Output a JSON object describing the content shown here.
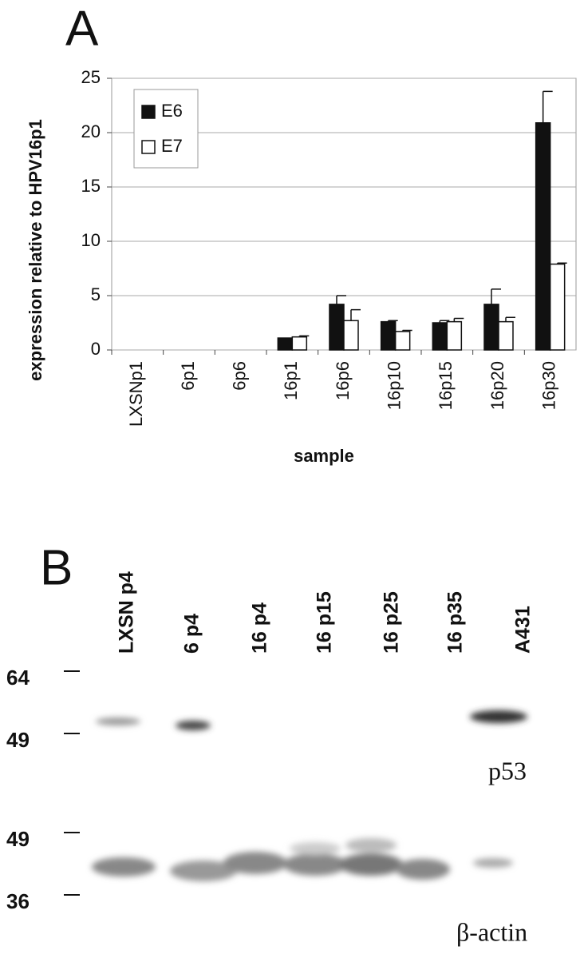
{
  "panel_a_label": "A",
  "chart_data": {
    "type": "bar",
    "y_label": "expression relative to HPV16p1",
    "x_label": "sample",
    "categories": [
      "LXSNp1",
      "6p1",
      "6p6",
      "16p1",
      "16p6",
      "16p10",
      "16p15",
      "16p20",
      "16p30"
    ],
    "series": [
      {
        "name": "E6",
        "color": "#111111",
        "values": [
          0,
          0,
          0,
          1.1,
          4.2,
          2.6,
          2.5,
          4.2,
          20.9
        ],
        "errors": [
          0,
          0,
          0,
          0,
          0.8,
          0.1,
          0.2,
          1.4,
          2.9
        ]
      },
      {
        "name": "E7",
        "color": "#ffffff",
        "values": [
          0,
          0,
          0,
          1.2,
          2.7,
          1.7,
          2.6,
          2.6,
          7.9
        ],
        "errors": [
          0,
          0,
          0,
          0.1,
          1.0,
          0.1,
          0.3,
          0.4,
          0.1
        ]
      }
    ],
    "ylim": [
      0,
      25
    ],
    "yticks": [
      0,
      5,
      10,
      15,
      20,
      25
    ],
    "grid": true,
    "legend": "upper-left"
  },
  "blot": {
    "panel_label": "B",
    "lanes": [
      "LXSN p4",
      "6 p4",
      "16 p4",
      "16 p15",
      "16 p25",
      "16 p35",
      "A431"
    ],
    "markers": [
      64,
      49,
      49,
      36
    ],
    "p53_label": "p53",
    "actin_label": "β-actin"
  }
}
